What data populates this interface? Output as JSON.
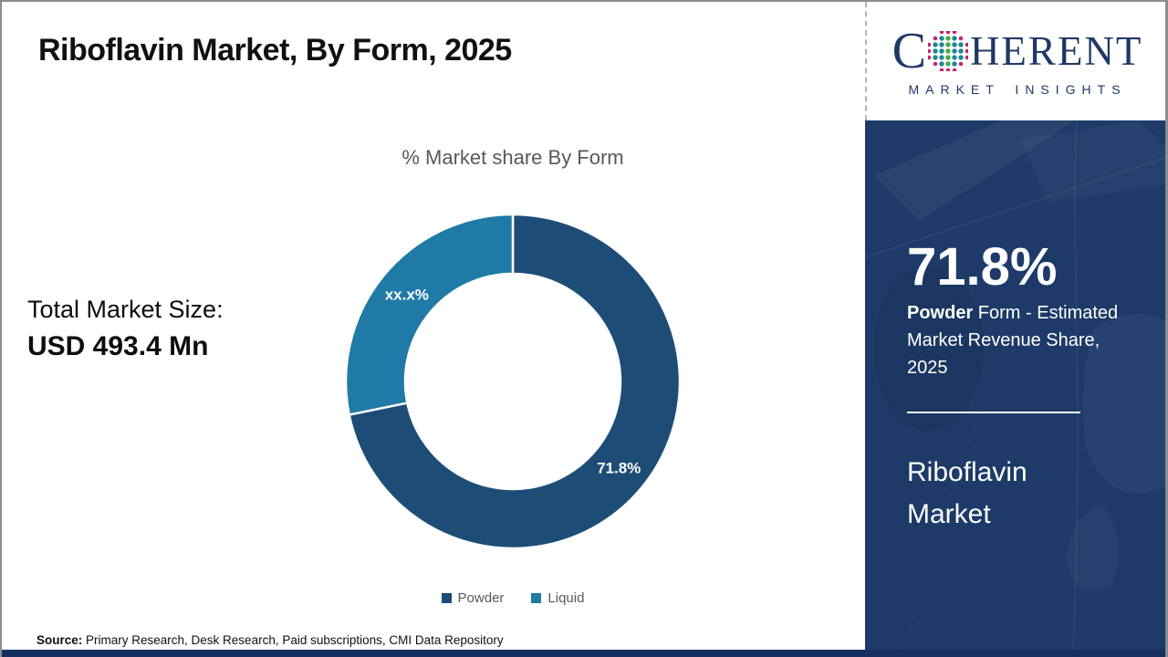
{
  "header": {
    "title": "Riboflavin Market, By Form, 2025"
  },
  "logo": {
    "brand_c": "C",
    "brand_rest": "HERENT",
    "tagline": "MARKET INSIGHTS",
    "brand_color": "#1F3864",
    "dot_colors": [
      "#C2266B",
      "#4FA83D",
      "#1B879B"
    ]
  },
  "left_panel": {
    "total_label": "Total Market Size:",
    "total_value": "USD 493.4 Mn"
  },
  "chart_data": {
    "type": "pie",
    "donut": true,
    "title": "% Market share By Form",
    "categories": [
      "Powder",
      "Liquid"
    ],
    "values": [
      71.8,
      28.2
    ],
    "labels": [
      "71.8%",
      "xx.x%"
    ],
    "colors": [
      "#1D4D77",
      "#207AA6"
    ],
    "legend_position": "bottom",
    "start_angle_deg": 0,
    "direction": "clockwise"
  },
  "sidebar": {
    "stat_value": "71.8%",
    "stat_bold": "Powder",
    "stat_rest": " Form - Estimated Market Revenue Share, 2025",
    "market_name": "Riboflavin Market",
    "background_color": "#1D3A68"
  },
  "footer": {
    "source_label": "Source:",
    "source_text": " Primary Research, Desk Research, Paid subscriptions, CMI Data Repository"
  }
}
